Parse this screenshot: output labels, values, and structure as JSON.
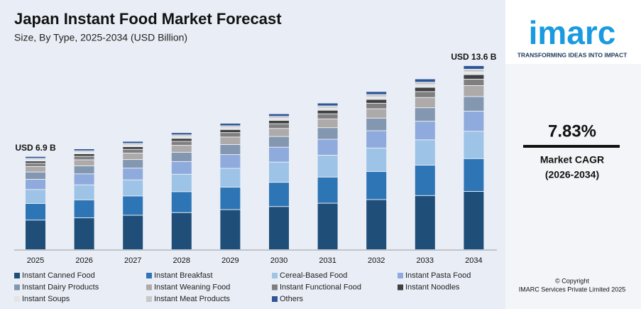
{
  "chart_data": {
    "type": "bar",
    "stacked": true,
    "title": "Japan Instant Food Market Forecast",
    "subtitle": "Size, By Type, 2025-2034 (USD Billion)",
    "categories": [
      "2025",
      "2026",
      "2027",
      "2028",
      "2029",
      "2030",
      "2031",
      "2032",
      "2033",
      "2034"
    ],
    "annotations": [
      "USD 6.9 B",
      "USD 13.6 B"
    ],
    "ylim": [
      0,
      14
    ],
    "series": [
      {
        "name": "Instant Canned Food",
        "color": "#1f4e79",
        "values": [
          2.21,
          2.38,
          2.57,
          2.77,
          2.99,
          3.22,
          3.47,
          3.74,
          4.04,
          4.35
        ]
      },
      {
        "name": "Instant Breakfast",
        "color": "#2e75b6",
        "values": [
          1.24,
          1.34,
          1.44,
          1.56,
          1.68,
          1.81,
          1.95,
          2.1,
          2.27,
          2.45
        ]
      },
      {
        "name": "Cereal-Based Food",
        "color": "#9dc3e6",
        "values": [
          1.04,
          1.12,
          1.2,
          1.3,
          1.4,
          1.51,
          1.63,
          1.75,
          1.89,
          2.04
        ]
      },
      {
        "name": "Instant Pasta Food",
        "color": "#8faadc",
        "values": [
          0.76,
          0.82,
          0.88,
          0.95,
          1.03,
          1.11,
          1.19,
          1.29,
          1.39,
          1.5
        ]
      },
      {
        "name": "Instant Dairy Products",
        "color": "#8497b0",
        "values": [
          0.55,
          0.6,
          0.64,
          0.69,
          0.75,
          0.8,
          0.87,
          0.94,
          1.01,
          1.09
        ]
      },
      {
        "name": "Instant Weaning Food",
        "color": "#aeaaaa",
        "values": [
          0.41,
          0.45,
          0.48,
          0.52,
          0.56,
          0.6,
          0.65,
          0.7,
          0.76,
          0.82
        ]
      },
      {
        "name": "Instant Functional Food",
        "color": "#7f7f7f",
        "values": [
          0.24,
          0.26,
          0.28,
          0.3,
          0.33,
          0.35,
          0.38,
          0.41,
          0.44,
          0.48
        ]
      },
      {
        "name": "Instant Noodles",
        "color": "#404040",
        "values": [
          0.17,
          0.19,
          0.2,
          0.22,
          0.23,
          0.25,
          0.27,
          0.29,
          0.32,
          0.34
        ]
      },
      {
        "name": "Instant Soups",
        "color": "#e4e4e4",
        "values": [
          0.1,
          0.11,
          0.12,
          0.13,
          0.14,
          0.15,
          0.16,
          0.18,
          0.19,
          0.2
        ]
      },
      {
        "name": "Instant Meat Products",
        "color": "#c8c8c8",
        "values": [
          0.1,
          0.11,
          0.12,
          0.13,
          0.14,
          0.15,
          0.16,
          0.18,
          0.19,
          0.2
        ]
      },
      {
        "name": "Others",
        "color": "#2f5597",
        "values": [
          0.14,
          0.15,
          0.16,
          0.17,
          0.19,
          0.2,
          0.22,
          0.23,
          0.25,
          0.27
        ]
      }
    ]
  },
  "sidebar": {
    "logo": "imarc",
    "tagline": "TRANSFORMING IDEAS INTO IMPACT",
    "cagr": "7.83%",
    "cagr_label": "Market CAGR",
    "cagr_period": "(2026-2034)",
    "copyright": "© Copyright",
    "owner": "IMARC Services Private Limited 2025"
  }
}
